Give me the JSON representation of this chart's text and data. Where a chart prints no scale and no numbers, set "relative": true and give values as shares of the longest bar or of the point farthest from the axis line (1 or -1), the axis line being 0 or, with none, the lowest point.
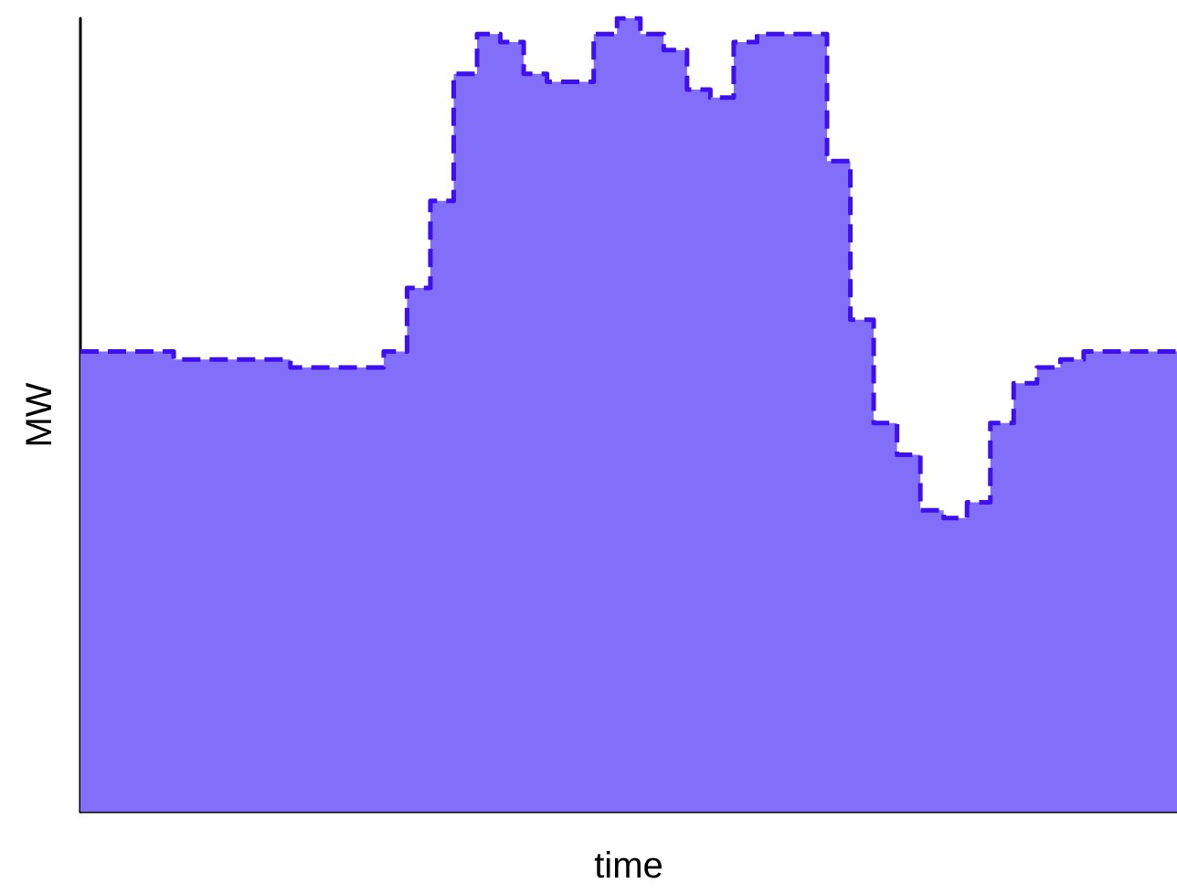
{
  "chart_data": {
    "type": "area",
    "xlabel": "time",
    "ylabel": "MW",
    "relative": true,
    "line_style": "dashed",
    "grid": false,
    "categories": [
      null,
      null,
      null,
      null,
      null,
      null,
      null,
      null,
      null,
      null,
      null,
      null,
      null,
      null,
      null,
      null,
      null,
      null,
      null,
      null,
      null,
      null,
      null,
      null,
      null,
      null,
      null,
      null,
      null,
      null,
      null,
      null,
      null,
      null,
      null,
      null,
      null,
      null,
      null,
      null,
      null,
      null,
      null,
      null,
      null,
      null,
      null,
      null
    ],
    "series": [
      {
        "color": "#836ef9",
        "values": [
          0.58,
          0.58,
          0.58,
          0.58,
          0.57,
          0.57,
          0.57,
          0.57,
          0.57,
          0.56,
          0.56,
          0.56,
          0.56,
          0.58,
          0.66,
          0.77,
          0.93,
          0.98,
          0.97,
          0.93,
          0.92,
          0.92,
          0.98,
          1,
          0.98,
          0.96,
          0.91,
          0.9,
          0.97,
          0.98,
          0.98,
          0.98,
          0.82,
          0.62,
          0.49,
          0.45,
          0.38,
          0.37,
          0.39,
          0.49,
          0.54,
          0.56,
          0.57,
          0.58,
          0.58,
          0.58,
          0.58,
          0.58
        ]
      },
      {
        "type": "step",
        "color": "#3c10ef",
        "values": [
          0.58,
          0.58,
          0.58,
          0.58,
          0.57,
          0.57,
          0.57,
          0.57,
          0.57,
          0.56,
          0.56,
          0.56,
          0.56,
          0.58,
          0.66,
          0.77,
          0.93,
          0.98,
          0.97,
          0.93,
          0.92,
          0.92,
          0.98,
          1,
          0.98,
          0.96,
          0.91,
          0.9,
          0.97,
          0.98,
          0.98,
          0.98,
          0.82,
          0.62,
          0.49,
          0.45,
          0.38,
          0.37,
          0.39,
          0.49,
          0.54,
          0.56,
          0.57,
          0.58,
          0.58,
          0.58,
          0.58,
          0.58
        ]
      }
    ]
  }
}
